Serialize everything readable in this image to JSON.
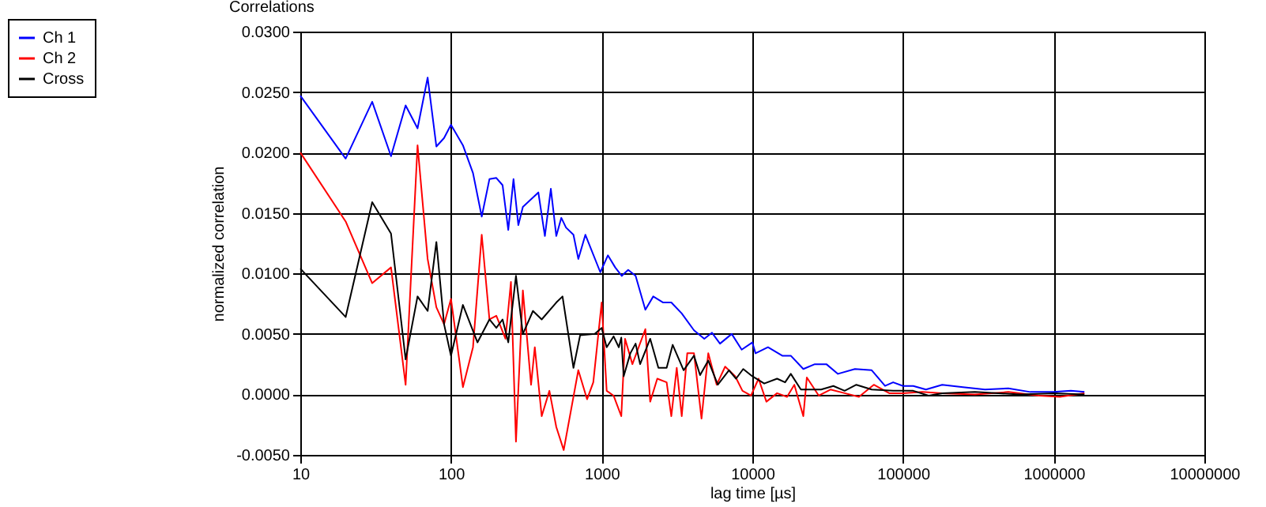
{
  "chart_data": {
    "type": "line",
    "title": "Correlations",
    "xlabel": "lag time [µs]",
    "ylabel": "normalized correlation",
    "log": "x",
    "grid": true,
    "legend": "top left",
    "marker": "none",
    "line_style": "solid",
    "xlim": [
      10,
      10000000
    ],
    "xticks": [
      10,
      100,
      1000,
      10000,
      100000,
      1000000,
      10000000
    ],
    "ylim": [
      -0.005,
      0.03
    ],
    "yticks": [
      {
        "value": -0.005,
        "label": "-0.0050"
      },
      {
        "value": 0,
        "label": "0.0000"
      },
      {
        "value": 0.005,
        "label": "0.0050"
      },
      {
        "value": 0.01,
        "label": "0.0100"
      },
      {
        "value": 0.015,
        "label": "0.0150"
      },
      {
        "value": 0.02,
        "label": "0.0200"
      },
      {
        "value": 0.025,
        "label": "0.0250"
      },
      {
        "value": 0.03,
        "label": "0.0300"
      }
    ],
    "series": [
      {
        "name": "Ch 1",
        "color": "#0000ff",
        "x": [
          10,
          20,
          30,
          40,
          50,
          60,
          70,
          80,
          90,
          100,
          120,
          140,
          160,
          180,
          200,
          220,
          240,
          260,
          280,
          300,
          380,
          420,
          460,
          500,
          540,
          580,
          650,
          700,
          780,
          980,
          1100,
          1230,
          1360,
          1500,
          1680,
          1950,
          2200,
          2560,
          2900,
          3400,
          4100,
          4800,
          5400,
          6100,
          7300,
          8500,
          10000,
          10500,
          12700,
          15800,
          18000,
          21800,
          26000,
          31000,
          37000,
          48000,
          62000,
          76000,
          86000,
          100000,
          117000,
          142000,
          182000,
          250000,
          350000,
          500000,
          700000,
          1000000,
          1300000,
          1600000
        ],
        "values": [
          0.0247,
          0.0195,
          0.0242,
          0.0197,
          0.0239,
          0.022,
          0.0262,
          0.0205,
          0.0212,
          0.0223,
          0.0206,
          0.0183,
          0.0147,
          0.0178,
          0.0179,
          0.0173,
          0.0136,
          0.0178,
          0.014,
          0.0155,
          0.0167,
          0.0131,
          0.017,
          0.0131,
          0.0146,
          0.0138,
          0.0132,
          0.0112,
          0.0132,
          0.0101,
          0.0115,
          0.0105,
          0.0098,
          0.0103,
          0.0098,
          0.007,
          0.0081,
          0.0076,
          0.0076,
          0.0067,
          0.0053,
          0.0046,
          0.0051,
          0.0042,
          0.005,
          0.0037,
          0.0043,
          0.0034,
          0.0039,
          0.0032,
          0.0032,
          0.0021,
          0.0025,
          0.0025,
          0.0017,
          0.0021,
          0.002,
          0.0007,
          0.001,
          0.0007,
          0.0007,
          0.0004,
          0.0008,
          0.0006,
          0.0004,
          0.0005,
          0.0002,
          0.0002,
          0.0003,
          0.0002
        ]
      },
      {
        "name": "Ch 2",
        "color": "#ff0000",
        "x": [
          10,
          20,
          30,
          40,
          50,
          60,
          70,
          80,
          90,
          100,
          120,
          140,
          160,
          180,
          200,
          230,
          250,
          270,
          300,
          340,
          360,
          400,
          450,
          500,
          560,
          700,
          800,
          880,
          1000,
          1080,
          1200,
          1350,
          1430,
          1600,
          1950,
          2100,
          2340,
          2700,
          2900,
          3150,
          3400,
          3700,
          4100,
          4600,
          5100,
          5800,
          6600,
          7700,
          8600,
          9800,
          11000,
          12400,
          14600,
          17000,
          19000,
          21800,
          23000,
          27600,
          33000,
          41000,
          51000,
          64000,
          81000,
          100000,
          134000,
          182000,
          300000,
          500000,
          800000,
          1100000,
          1600000
        ],
        "values": [
          0.02,
          0.0143,
          0.0092,
          0.0105,
          0.0008,
          0.0206,
          0.0112,
          0.0072,
          0.0058,
          0.0079,
          0.0006,
          0.0039,
          0.0132,
          0.0062,
          0.0065,
          0.0046,
          0.0093,
          -0.0039,
          0.0086,
          0.0008,
          0.0039,
          -0.0018,
          0.0003,
          -0.0027,
          -0.0046,
          0.002,
          -0.0004,
          0.001,
          0.0076,
          0.0003,
          -0.0001,
          -0.0018,
          0.0046,
          0.0025,
          0.0054,
          -0.0006,
          0.0013,
          0.001,
          -0.0018,
          0.0022,
          -0.0018,
          0.0034,
          0.0034,
          -0.002,
          0.0034,
          0.0008,
          0.0023,
          0.0015,
          0.0003,
          -0.0001,
          0.0013,
          -0.0006,
          0.0001,
          -0.0002,
          0.0008,
          -0.0018,
          0.0014,
          -0.0001,
          0.0004,
          0.0001,
          -0.0002,
          0.0008,
          0.0001,
          0.0001,
          0.0002,
          0.0001,
          0.0,
          0.0002,
          -0.0001,
          -0.0002,
          0.0001
        ]
      },
      {
        "name": "Cross",
        "color": "#000000",
        "x": [
          10,
          20,
          30,
          40,
          50,
          60,
          70,
          80,
          90,
          100,
          120,
          150,
          180,
          200,
          220,
          240,
          270,
          300,
          350,
          400,
          500,
          550,
          650,
          720,
          900,
          1000,
          1080,
          1200,
          1300,
          1350,
          1400,
          1550,
          1680,
          1800,
          2100,
          2380,
          2700,
          2960,
          3500,
          4100,
          4500,
          5100,
          5900,
          7000,
          7800,
          8700,
          10000,
          12000,
          14600,
          16500,
          18000,
          21000,
          28600,
          34500,
          41000,
          49000,
          62000,
          86000,
          117000,
          148000,
          182000,
          300000,
          600000,
          1000000,
          1600000
        ],
        "values": [
          0.0104,
          0.0064,
          0.0159,
          0.0133,
          0.0029,
          0.0081,
          0.0069,
          0.0126,
          0.0058,
          0.0032,
          0.0074,
          0.0043,
          0.0062,
          0.0055,
          0.0062,
          0.0043,
          0.0098,
          0.005,
          0.0069,
          0.0062,
          0.0076,
          0.0081,
          0.0022,
          0.0049,
          0.005,
          0.0055,
          0.0039,
          0.0048,
          0.0039,
          0.0047,
          0.0015,
          0.0034,
          0.0042,
          0.0025,
          0.0046,
          0.0022,
          0.0022,
          0.0041,
          0.002,
          0.0032,
          0.0016,
          0.0028,
          0.0008,
          0.002,
          0.0013,
          0.0021,
          0.0015,
          0.0009,
          0.0013,
          0.001,
          0.0017,
          0.0004,
          0.0004,
          0.0007,
          0.0003,
          0.0008,
          0.0004,
          0.0003,
          0.0003,
          -0.0001,
          0.0001,
          0.0002,
          0.0,
          0.0001,
          0.0
        ]
      }
    ]
  }
}
